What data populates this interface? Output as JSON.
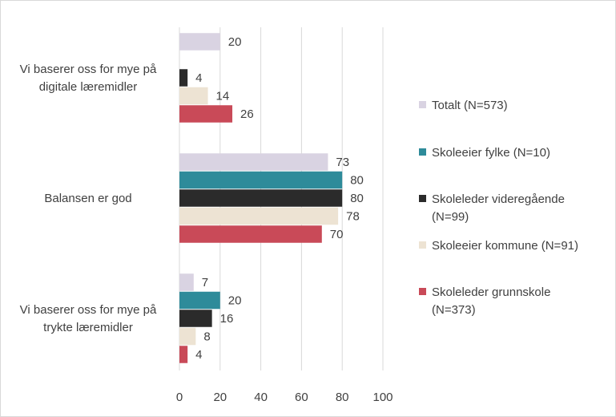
{
  "chart_data": {
    "type": "bar",
    "orientation": "horizontal",
    "categories": [
      [
        "Vi baserer oss for mye på",
        "digitale læremidler"
      ],
      [
        "Balansen er god"
      ],
      [
        "Vi baserer oss for mye på",
        "trykte læremidler"
      ]
    ],
    "series": [
      {
        "name": "Totalt (N=573)",
        "name_lines": [
          "Totalt (N=573)"
        ],
        "color": "#d9d3e2",
        "values": [
          20,
          73,
          7
        ]
      },
      {
        "name": "Skoleeier fylke (N=10)",
        "name_lines": [
          "Skoleeier fylke (N=10)"
        ],
        "color": "#2e8b9a",
        "values": [
          null,
          80,
          20
        ]
      },
      {
        "name": "Skoleleder videregående (N=99)",
        "name_lines": [
          "Skoleleder videregående",
          "(N=99)"
        ],
        "color": "#2b2b2b",
        "values": [
          4,
          80,
          16
        ]
      },
      {
        "name": "Skoleeier kommune (N=91)",
        "name_lines": [
          "Skoleeier kommune (N=91)"
        ],
        "color": "#ede3d3",
        "values": [
          14,
          78,
          8
        ]
      },
      {
        "name": "Skoleleder grunnskole (N=373)",
        "name_lines": [
          "Skoleleder grunnskole",
          "(N=373)"
        ],
        "color": "#c94a58",
        "values": [
          26,
          70,
          4
        ]
      }
    ],
    "xlim": [
      0,
      100
    ],
    "xticks": [
      0,
      20,
      40,
      60,
      80,
      100
    ],
    "grid": true,
    "legend": "right",
    "title": "",
    "xlabel": "",
    "ylabel": ""
  }
}
